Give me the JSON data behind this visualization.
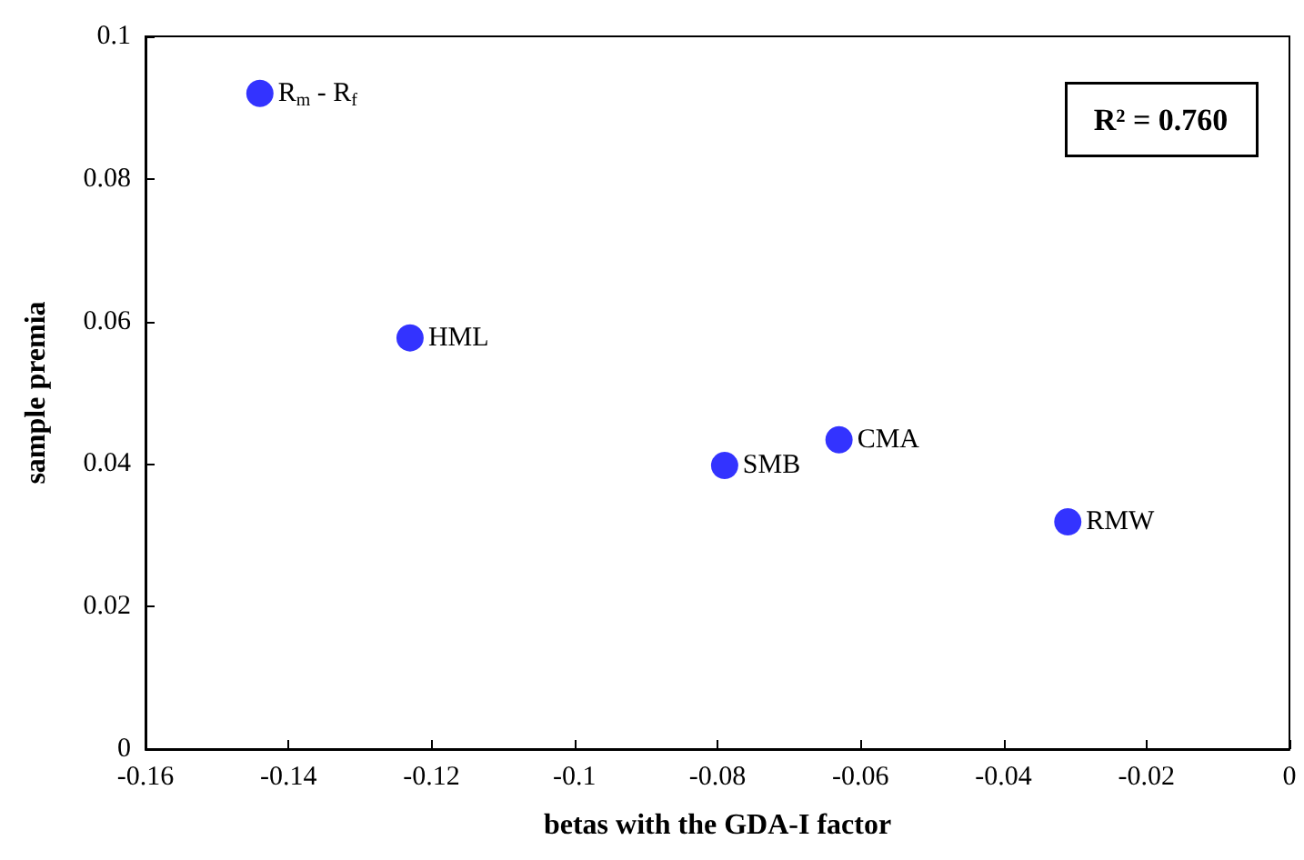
{
  "chart_data": {
    "type": "scatter",
    "xlabel": "betas with the GDA-I factor",
    "ylabel": "sample premia",
    "x": [
      -0.144,
      -0.123,
      -0.079,
      -0.063,
      -0.031
    ],
    "values": [
      0.092,
      0.0577,
      0.0398,
      0.0434,
      0.0319
    ],
    "color": "#0000ff",
    "marker": "circle",
    "xlim": [
      -0.16,
      0
    ],
    "xticks": [
      -0.16,
      -0.14,
      -0.12,
      -0.1,
      -0.08,
      -0.06,
      -0.04,
      -0.02,
      0
    ],
    "ylim": [
      0,
      0.1
    ],
    "yticks": [
      0,
      0.02,
      0.04,
      0.06,
      0.08,
      0.1
    ],
    "grid": false,
    "annotations": [
      {
        "text": "R$_{m}$ - R$_{f}$",
        "x": -0.144,
        "y": 0.092
      },
      {
        "text": "HML",
        "x": -0.123,
        "y": 0.0577
      },
      {
        "text": "SMB",
        "x": -0.079,
        "y": 0.0398
      },
      {
        "text": "CMA",
        "x": -0.063,
        "y": 0.0434
      },
      {
        "text": "RMW",
        "x": -0.031,
        "y": 0.0319
      },
      "R² = 0.760"
    ]
  }
}
